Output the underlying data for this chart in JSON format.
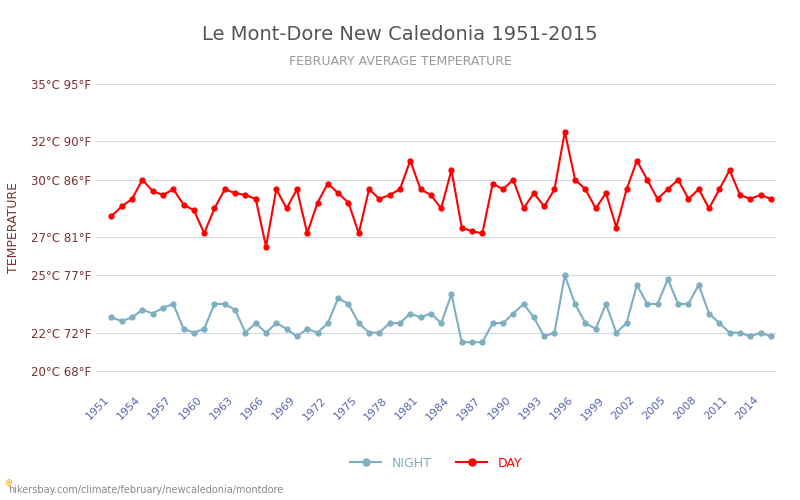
{
  "title": "Le Mont-Dore New Caledonia 1951-2015",
  "subtitle": "FEBRUARY AVERAGE TEMPERATURE",
  "xlabel": "",
  "ylabel": "TEMPERATURE",
  "watermark": "hikersbay.com/climate/february/newcaledonia/montdore",
  "years": [
    1951,
    1952,
    1953,
    1954,
    1955,
    1956,
    1957,
    1958,
    1959,
    1960,
    1961,
    1962,
    1963,
    1964,
    1965,
    1966,
    1967,
    1968,
    1969,
    1970,
    1971,
    1972,
    1973,
    1974,
    1975,
    1976,
    1977,
    1978,
    1979,
    1980,
    1981,
    1982,
    1983,
    1984,
    1985,
    1986,
    1987,
    1988,
    1989,
    1990,
    1991,
    1992,
    1993,
    1994,
    1995,
    1996,
    1997,
    1998,
    1999,
    2000,
    2001,
    2002,
    2003,
    2004,
    2005,
    2006,
    2007,
    2008,
    2009,
    2010,
    2011,
    2012,
    2013,
    2014,
    2015
  ],
  "day": [
    28.1,
    28.6,
    29.0,
    30.0,
    29.4,
    29.2,
    29.5,
    28.7,
    28.4,
    27.2,
    28.5,
    29.5,
    29.3,
    29.2,
    29.0,
    26.5,
    29.5,
    28.5,
    29.5,
    27.2,
    28.8,
    29.8,
    29.3,
    28.8,
    27.2,
    29.5,
    29.0,
    29.2,
    29.5,
    31.0,
    29.5,
    29.2,
    28.5,
    30.5,
    27.5,
    27.3,
    27.2,
    29.8,
    29.5,
    30.0,
    28.5,
    29.3,
    28.6,
    29.5,
    32.5,
    30.0,
    29.5,
    28.5,
    29.3,
    27.5,
    29.5,
    31.0,
    30.0,
    29.0,
    29.5,
    30.0,
    29.0,
    29.5,
    28.5,
    29.5,
    30.5,
    29.2,
    29.0,
    29.2,
    29.0
  ],
  "night": [
    22.8,
    22.6,
    22.8,
    23.2,
    23.0,
    23.3,
    23.5,
    22.2,
    22.0,
    22.2,
    23.5,
    23.5,
    23.2,
    22.0,
    22.5,
    22.0,
    22.5,
    22.2,
    21.8,
    22.2,
    22.0,
    22.5,
    23.8,
    23.5,
    22.5,
    22.0,
    22.0,
    22.5,
    22.5,
    23.0,
    22.8,
    23.0,
    22.5,
    24.0,
    21.5,
    21.5,
    21.5,
    22.5,
    22.5,
    23.0,
    23.5,
    22.8,
    21.8,
    22.0,
    25.0,
    23.5,
    22.5,
    22.2,
    23.5,
    22.0,
    22.5,
    24.5,
    23.5,
    23.5,
    24.8,
    23.5,
    23.5,
    24.5,
    23.0,
    22.5,
    22.0,
    22.0,
    21.8,
    22.0,
    21.8
  ],
  "day_color": "#ff0000",
  "night_color": "#7eafc0",
  "bg_color": "#ffffff",
  "grid_color": "#d0d8e8",
  "title_color": "#555555",
  "subtitle_color": "#888888",
  "ylabel_color": "#7c3030",
  "tick_color": "#7c3030",
  "xtick_color": "#5566aa",
  "yticks_c": [
    20,
    22,
    25,
    27,
    30,
    32,
    35
  ],
  "yticks_f": [
    68,
    72,
    77,
    81,
    86,
    90,
    95
  ],
  "ylim": [
    19,
    36
  ],
  "xtick_years": [
    1951,
    1954,
    1957,
    1960,
    1963,
    1966,
    1969,
    1972,
    1975,
    1978,
    1981,
    1984,
    1987,
    1990,
    1993,
    1996,
    1999,
    2002,
    2005,
    2008,
    2011,
    2014
  ]
}
